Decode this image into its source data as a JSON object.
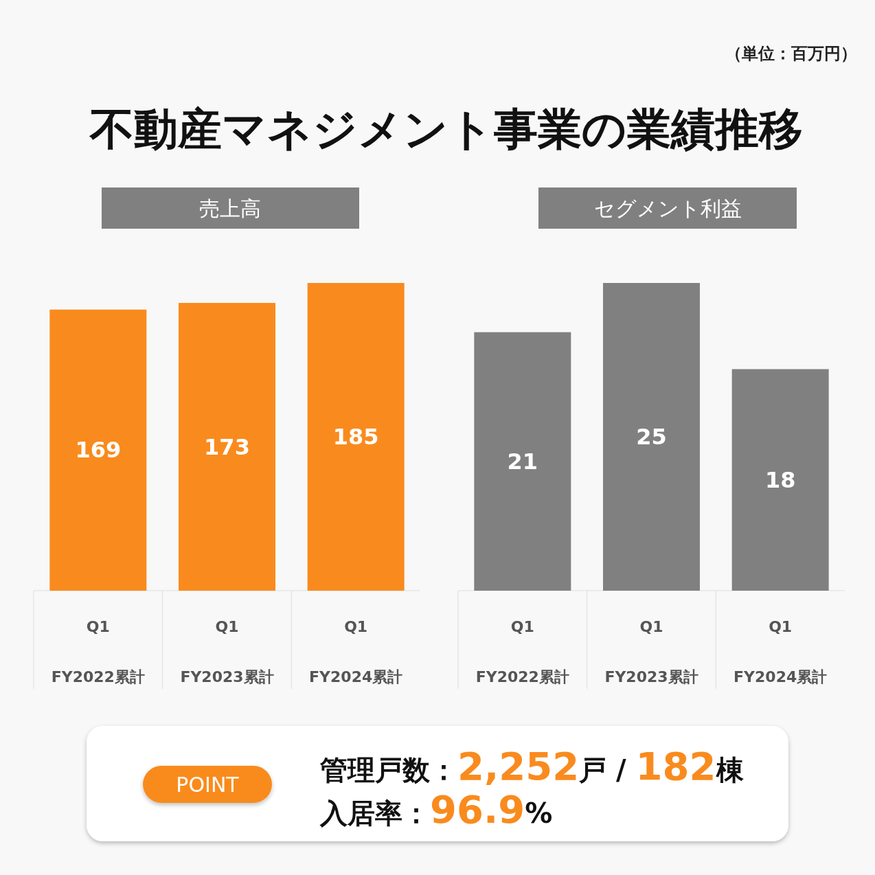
{
  "chart_data": [
    {
      "type": "bar",
      "title": "不動産マネジメント事業の業績推移",
      "subtitle": "売上高",
      "annotations": [
        "（単位：百万円）"
      ],
      "categories": [
        "Q1 FY2022累計",
        "Q1 FY2023累計",
        "Q1 FY2024累計"
      ],
      "values": [
        169,
        173,
        185
      ],
      "color": "#f98b1e",
      "data_labels": true
    },
    {
      "type": "bar",
      "title": "セグメント利益",
      "categories": [
        "Q1 FY2022累計",
        "Q1 FY2023累計",
        "Q1 FY2024累計"
      ],
      "values": [
        21,
        25,
        18
      ],
      "color": "#808080",
      "data_labels": true
    },
    {
      "type": "other",
      "annotations": [
        "POINT",
        "管理戸数：2,252戸 / 182棟",
        "入居率：96.9%"
      ]
    }
  ]
}
